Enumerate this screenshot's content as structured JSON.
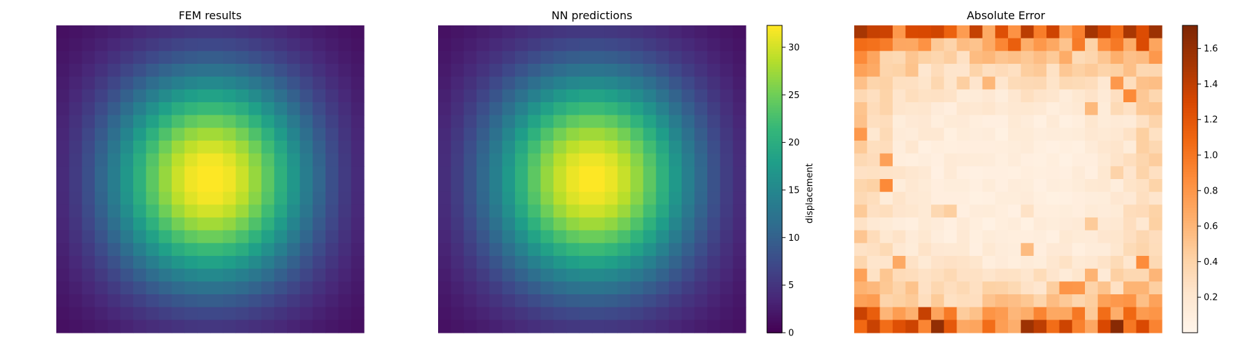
{
  "chart_data": [
    {
      "type": "heatmap",
      "title": "FEM results",
      "colormap": "viridis",
      "value_range": [
        0,
        32.3
      ],
      "grid": {
        "rows": 24,
        "cols": 24
      },
      "field": {
        "center_row": 11.5,
        "center_col": 11.5,
        "peak": 32.3,
        "sigma_rows": 6.2,
        "sigma_cols": 5.8
      },
      "colorbar": false,
      "axes_visible": false
    },
    {
      "type": "heatmap",
      "title": "NN predictions",
      "colormap": "viridis",
      "value_range": [
        0,
        32.3
      ],
      "grid": {
        "rows": 24,
        "cols": 24
      },
      "field": {
        "center_row": 11.5,
        "center_col": 11.5,
        "peak": 32.0,
        "sigma_rows": 6.3,
        "sigma_cols": 5.9
      },
      "colorbar": true,
      "colorbar_label": "displacement",
      "colorbar_ticks": [
        0,
        5,
        10,
        15,
        20,
        25,
        30
      ]
    },
    {
      "type": "heatmap",
      "title": "Absolute Error",
      "colormap": "oranges",
      "value_range": [
        0.0,
        1.73
      ],
      "grid": {
        "rows": 24,
        "cols": 24
      },
      "colorbar": true,
      "colorbar_label": "",
      "colorbar_ticks": [
        0.2,
        0.4,
        0.6,
        0.8,
        1.0,
        1.2,
        1.4,
        1.6
      ],
      "colorbar_tick_labels": [
        "0.2",
        "0.4",
        "0.6",
        "0.8",
        "1.0",
        "1.2",
        "1.4",
        "1.6"
      ]
    }
  ],
  "colors": {
    "viridis": [
      "#440154",
      "#482878",
      "#3e4989",
      "#31688e",
      "#26828e",
      "#1f9e89",
      "#35b779",
      "#6ece58",
      "#b5de2b",
      "#fde725"
    ],
    "oranges": [
      "#fff5eb",
      "#fee6ce",
      "#fdd0a2",
      "#fdae6b",
      "#fd8d3c",
      "#f16913",
      "#d94801",
      "#a63603",
      "#7f2704"
    ]
  }
}
